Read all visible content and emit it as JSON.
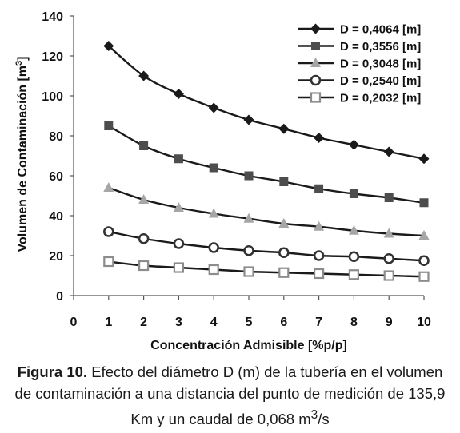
{
  "chart_data": {
    "type": "line",
    "ylabel": "Volumen de Contaminación [m",
    "ylabel_sup": "3",
    "ylabel_end": "]",
    "xlabel": "Concentración Admisible [%p/p]",
    "xlim": [
      0,
      10
    ],
    "ylim": [
      0,
      140
    ],
    "xticks": [
      0,
      1,
      2,
      3,
      4,
      5,
      6,
      7,
      8,
      9,
      10
    ],
    "yticks": [
      0,
      20,
      40,
      60,
      80,
      100,
      120,
      140
    ],
    "x": [
      1,
      2,
      3,
      4,
      5,
      6,
      7,
      8,
      9,
      10
    ],
    "grid": false,
    "legend_position": "top-right",
    "series": [
      {
        "name": "D = 0,4064  [m]",
        "marker": "diamond",
        "color": "#1a1a1a",
        "values": [
          125,
          110,
          101,
          94,
          88,
          83.5,
          79,
          75.5,
          72,
          68.5
        ]
      },
      {
        "name": "D = 0,3556  [m]",
        "marker": "square",
        "color": "#4d4d4d",
        "values": [
          85,
          75,
          68.5,
          64,
          60,
          57,
          53.5,
          51,
          49,
          46.5
        ]
      },
      {
        "name": "D = 0,3048  [m]",
        "marker": "triangle",
        "color": "#a6a6a6",
        "values": [
          54,
          48,
          44,
          41,
          38.5,
          36,
          34.5,
          32.5,
          31,
          30
        ]
      },
      {
        "name": "D = 0,2540  [m]",
        "marker": "circle-open",
        "color": "#333333",
        "values": [
          32,
          28.5,
          26,
          24,
          22.5,
          21.5,
          20,
          19.5,
          18.5,
          17.5
        ]
      },
      {
        "name": "D = 0,2032  [m]",
        "marker": "square-open",
        "color": "#8c8c8c",
        "values": [
          17,
          15,
          14,
          13,
          12,
          11.5,
          11,
          10.5,
          10,
          9.5
        ]
      }
    ]
  },
  "caption": {
    "label": "Figura 10.",
    "text": " Efecto del diámetro D (m) de la tubería en el volumen de contaminación a una distancia del punto de medición de 135,9 Km y un caudal de 0,068 m",
    "unit_sup": "3",
    "unit_end": "/s"
  }
}
